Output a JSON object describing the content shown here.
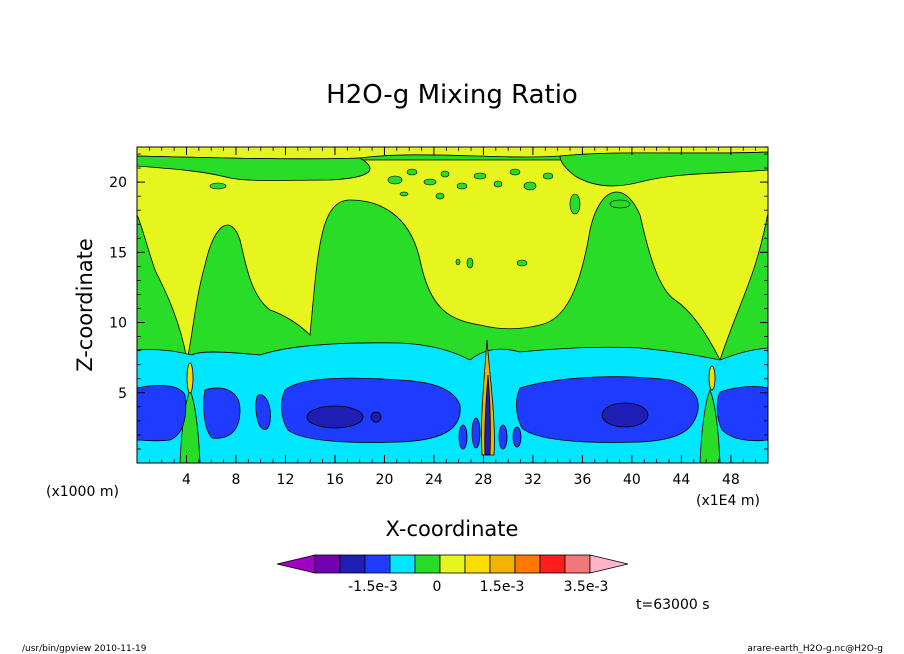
{
  "chart_data": {
    "type": "heatmap",
    "title": "H2O-g Mixing Ratio",
    "xlabel": "X-coordinate",
    "ylabel": "Z-coordinate",
    "x_units_left": "(x1000 m)",
    "x_units_right": "(x1E4 m)",
    "x_ticks": [
      "4",
      "8",
      "12",
      "16",
      "20",
      "24",
      "28",
      "32",
      "36",
      "40",
      "44",
      "48"
    ],
    "x_tick_values": [
      4,
      8,
      12,
      16,
      20,
      24,
      28,
      32,
      36,
      40,
      44,
      48
    ],
    "y_ticks": [
      "5",
      "10",
      "15",
      "20"
    ],
    "y_tick_values": [
      5,
      10,
      15,
      20
    ],
    "xlim": [
      0,
      51
    ],
    "ylim": [
      0,
      22.5
    ],
    "colorbar": {
      "colors": [
        "#a000c8",
        "#7000b0",
        "#1e1eb4",
        "#1e3cff",
        "#00e6ff",
        "#28dc28",
        "#e6f51e",
        "#fadc00",
        "#f0b400",
        "#ff7800",
        "#ff1e1e",
        "#f07878",
        "#ffb4c8"
      ],
      "labels": [
        "-1.5e-3",
        "0",
        "1.5e-3",
        "3.5e-3"
      ]
    },
    "annotation": "t=63000 s"
  },
  "footer": {
    "left": "/usr/bin/gpview   2010-11-19",
    "right": "arare-earth_H2O-g.nc@H2O-g"
  }
}
